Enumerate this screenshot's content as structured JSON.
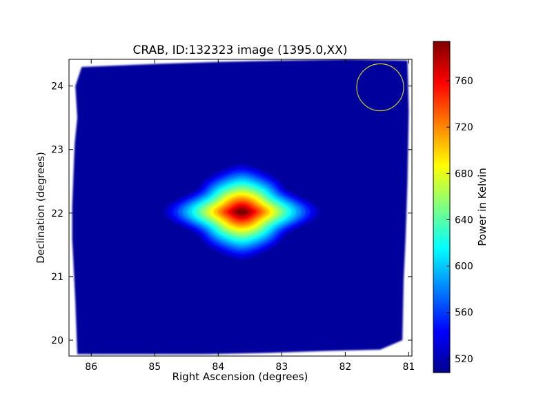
{
  "chart_data": {
    "type": "heatmap",
    "title": "CRAB, ID:132323 image (1395.0,XX)",
    "xlabel": "Right Ascension (degrees)",
    "ylabel": "Declination (degrees)",
    "xlim": [
      86.35,
      80.95
    ],
    "ylim": [
      19.75,
      24.42
    ],
    "x_ticks": [
      86,
      85,
      84,
      83,
      82,
      81
    ],
    "y_ticks": [
      20,
      21,
      22,
      23,
      24
    ],
    "grid": false,
    "colormap": "jet",
    "background_value": 512,
    "colorbar": {
      "label": "Power in Kelvin",
      "range": [
        508,
        794
      ],
      "ticks": [
        520,
        560,
        600,
        640,
        680,
        720,
        760
      ]
    },
    "source": {
      "center_ra": 83.63,
      "center_dec": 22.02,
      "peak_value": 794
    },
    "beam_marker": {
      "center_ra": 81.45,
      "center_dec": 23.98,
      "color": "#c8c832"
    },
    "coverage_outline": [
      [
        86.25,
        24.0
      ],
      [
        86.15,
        24.3
      ],
      [
        84.9,
        24.35
      ],
      [
        84.0,
        24.38
      ],
      [
        83.0,
        24.4
      ],
      [
        81.95,
        24.42
      ],
      [
        81.02,
        24.4
      ],
      [
        81.0,
        23.6
      ],
      [
        81.02,
        22.5
      ],
      [
        81.05,
        21.6
      ],
      [
        81.08,
        20.95
      ],
      [
        81.1,
        20.0
      ],
      [
        81.45,
        19.85
      ],
      [
        82.3,
        19.83
      ],
      [
        83.2,
        19.8
      ],
      [
        84.2,
        19.78
      ],
      [
        85.2,
        19.78
      ],
      [
        86.22,
        19.78
      ],
      [
        86.25,
        20.6
      ],
      [
        86.27,
        21.0
      ],
      [
        86.3,
        21.6
      ],
      [
        86.3,
        22.1
      ],
      [
        86.28,
        22.6
      ],
      [
        86.26,
        23.1
      ],
      [
        86.22,
        23.5
      ]
    ]
  }
}
